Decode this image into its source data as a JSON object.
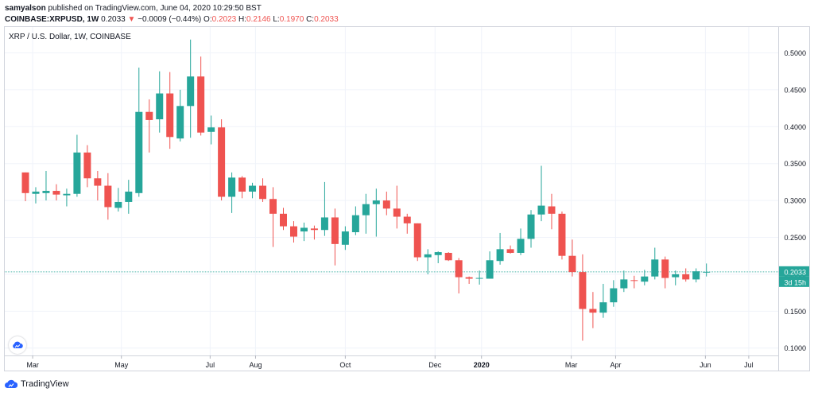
{
  "header": {
    "author": "samyalson",
    "published_text": "published on TradingView.com, June 04, 2020 10:29:50 BST",
    "symbol": "COINBASE:XRPUSD, 1W",
    "last_price": "0.2033",
    "change_arrow": "▼",
    "change": "−0.0009 (−0.44%)",
    "o_label": "O:",
    "o_value": "0.2023",
    "h_label": "H:",
    "h_value": "0.2146",
    "l_label": "L:",
    "l_value": "0.1970",
    "c_label": "C:",
    "c_value": "0.2033"
  },
  "footer": {
    "brand": "TradingView"
  },
  "colors": {
    "up": "#26a69a",
    "down": "#ef5350",
    "grid": "#f0f3fa",
    "axis_text": "#131722",
    "price_line": "#26a69a"
  },
  "chart_data": {
    "type": "candlestick",
    "title": "XRP / U.S. Dollar, 1W, COINBASE",
    "ylim": [
      0.09,
      0.535
    ],
    "y_ticks": [
      "0.1000",
      "0.1500",
      "0.2000",
      "0.2500",
      "0.3000",
      "0.3500",
      "0.4000",
      "0.4500",
      "0.5000"
    ],
    "x_ticks": [
      {
        "label": "Mar",
        "i": 0.7
      },
      {
        "label": "May",
        "i": 9.3
      },
      {
        "label": "Jul",
        "i": 17.9
      },
      {
        "label": "Aug",
        "i": 22.3
      },
      {
        "label": "Oct",
        "i": 31.0
      },
      {
        "label": "Dec",
        "i": 39.7
      },
      {
        "label": "2020",
        "i": 44.2
      },
      {
        "label": "Mar",
        "i": 52.9
      },
      {
        "label": "Apr",
        "i": 57.2
      },
      {
        "label": "Jun",
        "i": 65.9
      },
      {
        "label": "Jul",
        "i": 70.1
      }
    ],
    "last_price_label": "0.2033",
    "countdown_label": "3d 15h",
    "candles": [
      {
        "o": 0.338,
        "h": 0.338,
        "l": 0.299,
        "c": 0.31
      },
      {
        "o": 0.309,
        "h": 0.318,
        "l": 0.296,
        "c": 0.312
      },
      {
        "o": 0.31,
        "h": 0.34,
        "l": 0.3,
        "c": 0.313
      },
      {
        "o": 0.313,
        "h": 0.322,
        "l": 0.3,
        "c": 0.308
      },
      {
        "o": 0.307,
        "h": 0.316,
        "l": 0.292,
        "c": 0.309
      },
      {
        "o": 0.309,
        "h": 0.389,
        "l": 0.305,
        "c": 0.365
      },
      {
        "o": 0.365,
        "h": 0.375,
        "l": 0.318,
        "c": 0.33
      },
      {
        "o": 0.33,
        "h": 0.34,
        "l": 0.3,
        "c": 0.32
      },
      {
        "o": 0.32,
        "h": 0.337,
        "l": 0.274,
        "c": 0.291
      },
      {
        "o": 0.29,
        "h": 0.317,
        "l": 0.285,
        "c": 0.298
      },
      {
        "o": 0.298,
        "h": 0.328,
        "l": 0.282,
        "c": 0.312
      },
      {
        "o": 0.31,
        "h": 0.48,
        "l": 0.305,
        "c": 0.42
      },
      {
        "o": 0.42,
        "h": 0.437,
        "l": 0.365,
        "c": 0.409
      },
      {
        "o": 0.41,
        "h": 0.475,
        "l": 0.392,
        "c": 0.445
      },
      {
        "o": 0.445,
        "h": 0.474,
        "l": 0.37,
        "c": 0.386
      },
      {
        "o": 0.384,
        "h": 0.45,
        "l": 0.38,
        "c": 0.428
      },
      {
        "o": 0.428,
        "h": 0.518,
        "l": 0.385,
        "c": 0.468
      },
      {
        "o": 0.468,
        "h": 0.495,
        "l": 0.388,
        "c": 0.392
      },
      {
        "o": 0.393,
        "h": 0.415,
        "l": 0.376,
        "c": 0.399
      },
      {
        "o": 0.399,
        "h": 0.41,
        "l": 0.3,
        "c": 0.305
      },
      {
        "o": 0.305,
        "h": 0.338,
        "l": 0.283,
        "c": 0.331
      },
      {
        "o": 0.331,
        "h": 0.333,
        "l": 0.303,
        "c": 0.312
      },
      {
        "o": 0.312,
        "h": 0.324,
        "l": 0.303,
        "c": 0.32
      },
      {
        "o": 0.32,
        "h": 0.33,
        "l": 0.298,
        "c": 0.302
      },
      {
        "o": 0.302,
        "h": 0.318,
        "l": 0.237,
        "c": 0.282
      },
      {
        "o": 0.282,
        "h": 0.29,
        "l": 0.26,
        "c": 0.265
      },
      {
        "o": 0.265,
        "h": 0.272,
        "l": 0.243,
        "c": 0.251
      },
      {
        "o": 0.258,
        "h": 0.27,
        "l": 0.245,
        "c": 0.263
      },
      {
        "o": 0.262,
        "h": 0.266,
        "l": 0.247,
        "c": 0.26
      },
      {
        "o": 0.26,
        "h": 0.325,
        "l": 0.252,
        "c": 0.277
      },
      {
        "o": 0.277,
        "h": 0.289,
        "l": 0.212,
        "c": 0.241
      },
      {
        "o": 0.24,
        "h": 0.265,
        "l": 0.233,
        "c": 0.258
      },
      {
        "o": 0.257,
        "h": 0.292,
        "l": 0.253,
        "c": 0.28
      },
      {
        "o": 0.28,
        "h": 0.309,
        "l": 0.255,
        "c": 0.295
      },
      {
        "o": 0.295,
        "h": 0.316,
        "l": 0.251,
        "c": 0.3
      },
      {
        "o": 0.3,
        "h": 0.312,
        "l": 0.28,
        "c": 0.289
      },
      {
        "o": 0.289,
        "h": 0.32,
        "l": 0.262,
        "c": 0.278
      },
      {
        "o": 0.278,
        "h": 0.282,
        "l": 0.255,
        "c": 0.269
      },
      {
        "o": 0.269,
        "h": 0.269,
        "l": 0.218,
        "c": 0.223
      },
      {
        "o": 0.223,
        "h": 0.234,
        "l": 0.2,
        "c": 0.227
      },
      {
        "o": 0.226,
        "h": 0.231,
        "l": 0.215,
        "c": 0.23
      },
      {
        "o": 0.229,
        "h": 0.23,
        "l": 0.218,
        "c": 0.219
      },
      {
        "o": 0.219,
        "h": 0.222,
        "l": 0.174,
        "c": 0.196
      },
      {
        "o": 0.196,
        "h": 0.197,
        "l": 0.187,
        "c": 0.194
      },
      {
        "o": 0.194,
        "h": 0.205,
        "l": 0.186,
        "c": 0.195
      },
      {
        "o": 0.194,
        "h": 0.231,
        "l": 0.194,
        "c": 0.219
      },
      {
        "o": 0.218,
        "h": 0.256,
        "l": 0.213,
        "c": 0.234
      },
      {
        "o": 0.234,
        "h": 0.239,
        "l": 0.228,
        "c": 0.229
      },
      {
        "o": 0.229,
        "h": 0.262,
        "l": 0.226,
        "c": 0.248
      },
      {
        "o": 0.248,
        "h": 0.287,
        "l": 0.236,
        "c": 0.281
      },
      {
        "o": 0.281,
        "h": 0.347,
        "l": 0.272,
        "c": 0.293
      },
      {
        "o": 0.292,
        "h": 0.309,
        "l": 0.261,
        "c": 0.282
      },
      {
        "o": 0.282,
        "h": 0.285,
        "l": 0.22,
        "c": 0.225
      },
      {
        "o": 0.225,
        "h": 0.247,
        "l": 0.197,
        "c": 0.203
      },
      {
        "o": 0.203,
        "h": 0.227,
        "l": 0.11,
        "c": 0.153
      },
      {
        "o": 0.153,
        "h": 0.176,
        "l": 0.127,
        "c": 0.148
      },
      {
        "o": 0.148,
        "h": 0.187,
        "l": 0.141,
        "c": 0.162
      },
      {
        "o": 0.162,
        "h": 0.192,
        "l": 0.156,
        "c": 0.181
      },
      {
        "o": 0.181,
        "h": 0.205,
        "l": 0.176,
        "c": 0.193
      },
      {
        "o": 0.192,
        "h": 0.198,
        "l": 0.181,
        "c": 0.191
      },
      {
        "o": 0.19,
        "h": 0.206,
        "l": 0.185,
        "c": 0.197
      },
      {
        "o": 0.197,
        "h": 0.236,
        "l": 0.193,
        "c": 0.22
      },
      {
        "o": 0.22,
        "h": 0.224,
        "l": 0.181,
        "c": 0.195
      },
      {
        "o": 0.196,
        "h": 0.205,
        "l": 0.185,
        "c": 0.2
      },
      {
        "o": 0.2,
        "h": 0.208,
        "l": 0.19,
        "c": 0.193
      },
      {
        "o": 0.193,
        "h": 0.208,
        "l": 0.189,
        "c": 0.204
      },
      {
        "o": 0.2023,
        "h": 0.2146,
        "l": 0.197,
        "c": 0.2033
      }
    ]
  }
}
